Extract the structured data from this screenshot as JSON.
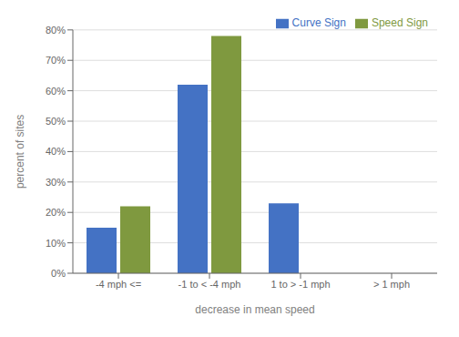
{
  "chart_data": {
    "type": "bar",
    "xlabel": "decrease in mean speed",
    "ylabel": "percent of sites",
    "categories": [
      "-4 mph <=",
      "-1 to < -4 mph",
      "1 to > -1 mph",
      "> 1 mph"
    ],
    "series": [
      {
        "name": "Curve Sign",
        "color": "#4472C4",
        "values": [
          15,
          62,
          23,
          0
        ]
      },
      {
        "name": "Speed Sign",
        "color": "#7F993F",
        "values": [
          22,
          78,
          0,
          0
        ]
      }
    ],
    "ylim": [
      0,
      80
    ],
    "yticks": [
      {
        "value": 0,
        "label": "0%"
      },
      {
        "value": 10,
        "label": "10%"
      },
      {
        "value": 20,
        "label": "20%"
      },
      {
        "value": 30,
        "label": "30%"
      },
      {
        "value": 40,
        "label": "40%"
      },
      {
        "value": 50,
        "label": "50%"
      },
      {
        "value": 60,
        "label": "60%"
      },
      {
        "value": 70,
        "label": "70%"
      },
      {
        "value": 80,
        "label": "80%"
      }
    ],
    "grid": true,
    "legend": "upper right"
  }
}
